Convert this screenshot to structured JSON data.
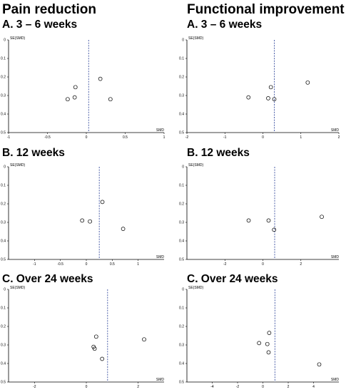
{
  "headings": {
    "pain": "Pain reduction",
    "functional": "Functional improvement"
  },
  "chart_data": [
    {
      "id": "pain-a",
      "type": "scatter",
      "title": "A. 3 – 6 weeks",
      "xlabel": "SMD",
      "ylabel": "SE(SMD)",
      "xlim": [
        -1,
        1
      ],
      "ylim": [
        0.5,
        0
      ],
      "y_inverted": true,
      "xticks": [
        -1,
        -0.5,
        0,
        0.5,
        1
      ],
      "xtick_labels": [
        "-1",
        "-0.5",
        "0",
        "0.5",
        "1"
      ],
      "yticks": [
        0,
        0.1,
        0.2,
        0.3,
        0.4,
        0.5
      ],
      "ytick_labels": [
        "0",
        "0.1",
        "0.2",
        "0.3",
        "0.4",
        "0.5"
      ],
      "pooled_smd": 0.03,
      "line_color": "#3a4fa0",
      "points": [
        {
          "x": -0.24,
          "y": 0.32
        },
        {
          "x": -0.15,
          "y": 0.31
        },
        {
          "x": -0.14,
          "y": 0.255
        },
        {
          "x": 0.18,
          "y": 0.21
        },
        {
          "x": 0.31,
          "y": 0.32
        }
      ]
    },
    {
      "id": "func-a",
      "type": "scatter",
      "title": "A. 3 – 6 weeks",
      "xlabel": "SMD",
      "ylabel": "SE(SMD)",
      "xlim": [
        -2,
        2
      ],
      "ylim": [
        0.5,
        0
      ],
      "y_inverted": true,
      "xticks": [
        -2,
        -1,
        0,
        1,
        2
      ],
      "xtick_labels": [
        "-2",
        "-1",
        "0",
        "1",
        "2"
      ],
      "yticks": [
        0,
        0.1,
        0.2,
        0.3,
        0.4,
        0.5
      ],
      "ytick_labels": [
        "0",
        "0.1",
        "0.2",
        "0.3",
        "0.4",
        "0.5"
      ],
      "pooled_smd": 0.3,
      "line_color": "#3a4fa0",
      "points": [
        {
          "x": -0.38,
          "y": 0.31
        },
        {
          "x": 0.14,
          "y": 0.315
        },
        {
          "x": 0.21,
          "y": 0.255
        },
        {
          "x": 0.3,
          "y": 0.32
        },
        {
          "x": 1.18,
          "y": 0.23
        }
      ]
    },
    {
      "id": "pain-b",
      "type": "scatter",
      "title": "B. 12 weeks",
      "xlabel": "SMD",
      "ylabel": "SE(SMD)",
      "xlim": [
        -1.5,
        1.5
      ],
      "ylim": [
        0.5,
        0
      ],
      "y_inverted": true,
      "xticks": [
        -1,
        -0.5,
        0,
        0.5,
        1
      ],
      "xtick_labels": [
        "-1",
        "-0.5",
        "0",
        "0.5",
        "1"
      ],
      "yticks": [
        0,
        0.1,
        0.2,
        0.3,
        0.4,
        0.5
      ],
      "ytick_labels": [
        "0",
        "0.1",
        "0.2",
        "0.3",
        "0.4",
        "0.5"
      ],
      "pooled_smd": 0.25,
      "line_color": "#3a4fa0",
      "points": [
        {
          "x": -0.08,
          "y": 0.29
        },
        {
          "x": 0.07,
          "y": 0.295
        },
        {
          "x": 0.31,
          "y": 0.19
        },
        {
          "x": 0.71,
          "y": 0.335
        }
      ]
    },
    {
      "id": "func-b",
      "type": "scatter",
      "title": "B. 12 weeks",
      "xlabel": "SMD",
      "ylabel": "SE(SMD)",
      "xlim": [
        -4,
        4
      ],
      "ylim": [
        0.5,
        0
      ],
      "y_inverted": true,
      "xticks": [
        -2,
        0,
        2
      ],
      "xtick_labels": [
        "-2",
        "0",
        "2"
      ],
      "yticks": [
        0,
        0.1,
        0.2,
        0.3,
        0.4,
        0.5
      ],
      "ytick_labels": [
        "0",
        "0.1",
        "0.2",
        "0.3",
        "0.4",
        "0.5"
      ],
      "pooled_smd": 0.62,
      "line_color": "#3a4fa0",
      "points": [
        {
          "x": -0.75,
          "y": 0.29
        },
        {
          "x": 0.3,
          "y": 0.29
        },
        {
          "x": 0.59,
          "y": 0.34
        },
        {
          "x": 3.1,
          "y": 0.27
        }
      ]
    },
    {
      "id": "pain-c",
      "type": "scatter",
      "title": "C. Over 24 weeks",
      "xlabel": "SMD",
      "ylabel": "SE(SMD)",
      "xlim": [
        -3,
        3
      ],
      "ylim": [
        0.5,
        0
      ],
      "y_inverted": true,
      "xticks": [
        -2,
        0,
        2
      ],
      "xtick_labels": [
        "-2",
        "0",
        "2"
      ],
      "yticks": [
        0,
        0.1,
        0.2,
        0.3,
        0.4,
        0.5
      ],
      "ytick_labels": [
        "0",
        "0.1",
        "0.2",
        "0.3",
        "0.4",
        "0.5"
      ],
      "pooled_smd": 0.82,
      "line_color": "#3a4fa0",
      "points": [
        {
          "x": 0.28,
          "y": 0.31
        },
        {
          "x": 0.32,
          "y": 0.32
        },
        {
          "x": 0.38,
          "y": 0.255
        },
        {
          "x": 0.61,
          "y": 0.375
        },
        {
          "x": 2.23,
          "y": 0.27
        }
      ]
    },
    {
      "id": "func-c",
      "type": "scatter",
      "title": "C. Over 24 weeks",
      "xlabel": "SMD",
      "ylabel": "SE(SMD)",
      "xlim": [
        -6,
        6
      ],
      "ylim": [
        0.5,
        0
      ],
      "y_inverted": true,
      "xticks": [
        -4,
        -2,
        0,
        2,
        4
      ],
      "xtick_labels": [
        "-4",
        "-2",
        "0",
        "2",
        "4"
      ],
      "yticks": [
        0,
        0.1,
        0.2,
        0.3,
        0.4,
        0.5
      ],
      "ytick_labels": [
        "0",
        "0.1",
        "0.2",
        "0.3",
        "0.4",
        "0.5"
      ],
      "pooled_smd": 0.95,
      "line_color": "#3a4fa0",
      "points": [
        {
          "x": -0.3,
          "y": 0.29
        },
        {
          "x": 0.35,
          "y": 0.295
        },
        {
          "x": 0.45,
          "y": 0.34
        },
        {
          "x": 0.5,
          "y": 0.235
        },
        {
          "x": 4.45,
          "y": 0.405
        }
      ]
    }
  ]
}
